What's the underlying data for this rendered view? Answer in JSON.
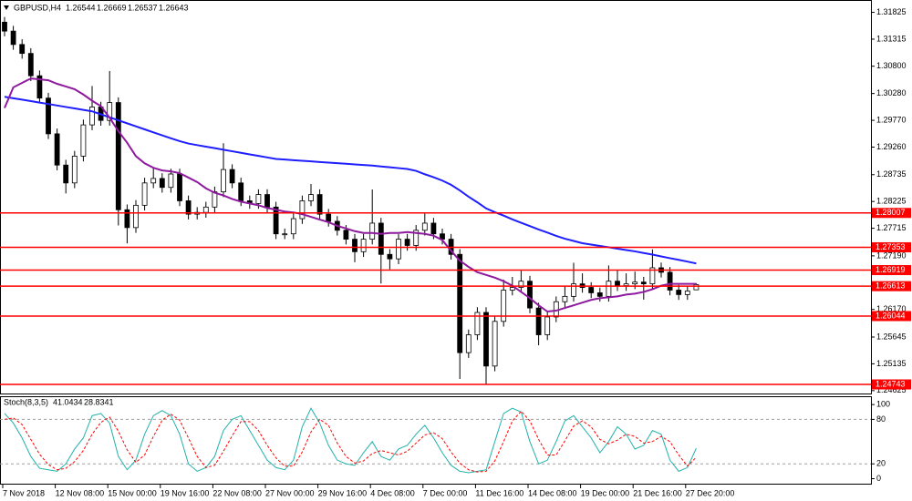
{
  "chart_data": [
    {
      "type": "candlestick",
      "title": "GBPUSD,H4",
      "categories": [
        "7 Nov 2018",
        null,
        null,
        null,
        null,
        null,
        "12 Nov 08:00",
        null,
        null,
        null,
        null,
        null,
        "15 Nov 00:00",
        null,
        null,
        null,
        null,
        null,
        "19 Nov 16:00",
        null,
        null,
        null,
        null,
        null,
        "22 Nov 08:00",
        null,
        null,
        null,
        null,
        null,
        "27 Nov 00:00",
        null,
        null,
        null,
        null,
        null,
        "29 Nov 16:00",
        null,
        null,
        null,
        null,
        null,
        "4 Dec 08:00",
        null,
        null,
        null,
        null,
        null,
        "7 Dec 00:00",
        null,
        null,
        null,
        null,
        null,
        "11 Dec 16:00",
        null,
        null,
        null,
        null,
        null,
        "14 Dec 08:00",
        null,
        null,
        null,
        null,
        null,
        "19 Dec 00:00",
        null,
        null,
        null,
        null,
        null,
        "21 Dec 16:00",
        null,
        null,
        null,
        null,
        null,
        "27 Dec 20:00",
        null
      ],
      "open": [
        1.31638,
        1.31468,
        1.31213,
        1.31043,
        1.30618,
        1.30193,
        1.29513,
        1.28918,
        1.28578,
        1.29088,
        1.29683,
        1.30023,
        1.29768,
        1.30108,
        1.28068,
        1.27728,
        1.28153,
        1.28578,
        1.28663,
        1.28493,
        1.28748,
        1.28238,
        1.27983,
        1.28017,
        1.28119,
        1.28408,
        1.28833,
        1.28578,
        1.28238,
        1.28187,
        1.28357,
        1.28119,
        1.27609,
        1.27609,
        1.27898,
        1.28238,
        1.28357,
        1.27983,
        1.27847,
        1.27677,
        1.27507,
        1.27269,
        1.27507,
        1.27813,
        1.27218,
        1.27133,
        1.27507,
        1.27388,
        1.27677,
        1.27813,
        1.27609,
        1.27507,
        1.27218,
        1.25348,
        1.25688,
        1.26113,
        1.25093,
        1.25943,
        1.26538,
        1.26589,
        1.26708,
        1.26198,
        1.25688,
        1.26028,
        1.26317,
        1.26419,
        1.26657,
        1.26589,
        1.26487,
        1.26419,
        1.26708,
        1.26623,
        1.26657,
        1.26691,
        1.26657,
        1.26963,
        1.26878,
        1.26538,
        1.26453,
        1.26544
      ],
      "high": [
        1.31738,
        1.31568,
        1.31313,
        1.31143,
        1.30718,
        1.30293,
        1.29613,
        1.29018,
        1.29188,
        1.29783,
        1.30423,
        1.30123,
        1.30708,
        1.30208,
        1.28168,
        1.28253,
        1.28678,
        1.28863,
        1.28763,
        1.28848,
        1.28848,
        1.28338,
        1.28117,
        1.28219,
        1.28508,
        1.29333,
        1.28933,
        1.28678,
        1.28338,
        1.28457,
        1.28457,
        1.28219,
        1.27709,
        1.27998,
        1.28338,
        1.28557,
        1.28457,
        1.28083,
        1.27947,
        1.27777,
        1.27607,
        1.27607,
        1.28453,
        1.27913,
        1.27318,
        1.27607,
        1.27607,
        1.27777,
        1.28013,
        1.27913,
        1.27709,
        1.27607,
        1.27318,
        1.25788,
        1.26213,
        1.26213,
        1.26043,
        1.26738,
        1.26789,
        1.26908,
        1.26808,
        1.26298,
        1.26128,
        1.26417,
        1.26619,
        1.27057,
        1.26857,
        1.26689,
        1.26587,
        1.27008,
        1.26908,
        1.26857,
        1.26891,
        1.26791,
        1.27313,
        1.27063,
        1.26978,
        1.26638,
        1.26621,
        1.26669
      ],
      "low": [
        1.31368,
        1.31113,
        1.30943,
        1.30518,
        1.30093,
        1.29413,
        1.28818,
        1.28378,
        1.28478,
        1.28988,
        1.29583,
        1.29668,
        1.29668,
        1.27768,
        1.27428,
        1.27628,
        1.28053,
        1.28478,
        1.28393,
        1.28393,
        1.28138,
        1.27883,
        1.27883,
        1.27917,
        1.28019,
        1.28308,
        1.28478,
        1.28138,
        1.28087,
        1.28087,
        1.28019,
        1.27509,
        1.27509,
        1.27509,
        1.27798,
        1.28138,
        1.27883,
        1.27747,
        1.27577,
        1.27407,
        1.27069,
        1.27169,
        1.27407,
        1.26663,
        1.26933,
        1.27033,
        1.27288,
        1.27288,
        1.27577,
        1.27509,
        1.27407,
        1.27118,
        1.24848,
        1.25248,
        1.25588,
        1.24743,
        1.24993,
        1.25843,
        1.26438,
        1.26489,
        1.26098,
        1.25488,
        1.25588,
        1.25928,
        1.26217,
        1.26319,
        1.26489,
        1.26387,
        1.26319,
        1.26319,
        1.26523,
        1.26523,
        1.26557,
        1.26357,
        1.26557,
        1.26778,
        1.26438,
        1.26353,
        1.26353,
        1.26537
      ],
      "close": [
        1.31468,
        1.31213,
        1.31043,
        1.30618,
        1.30193,
        1.29513,
        1.28918,
        1.28578,
        1.29088,
        1.29683,
        1.30023,
        1.29768,
        1.30108,
        1.28068,
        1.27728,
        1.28153,
        1.28578,
        1.28663,
        1.28493,
        1.28748,
        1.28238,
        1.27983,
        1.28017,
        1.28119,
        1.28408,
        1.28833,
        1.28578,
        1.28238,
        1.28187,
        1.28357,
        1.28119,
        1.27609,
        1.27609,
        1.27898,
        1.28238,
        1.28357,
        1.27983,
        1.27847,
        1.27677,
        1.27507,
        1.27269,
        1.27507,
        1.27813,
        1.27218,
        1.27133,
        1.27507,
        1.27388,
        1.27677,
        1.27813,
        1.27609,
        1.27507,
        1.27218,
        1.25348,
        1.25688,
        1.26113,
        1.25093,
        1.25943,
        1.26538,
        1.26589,
        1.26708,
        1.26198,
        1.25688,
        1.26028,
        1.26317,
        1.26419,
        1.26657,
        1.26589,
        1.26487,
        1.26419,
        1.26708,
        1.26623,
        1.26657,
        1.26691,
        1.26657,
        1.26963,
        1.26878,
        1.26538,
        1.26453,
        1.26521,
        1.26643
      ],
      "candle_color": "#000000",
      "up_fill": "#ffffff",
      "down_fill": "#000000",
      "series": [
        {
          "color": "#1e1eff",
          "values": [
            1.30218,
            1.3019,
            1.30163,
            1.30135,
            1.30107,
            1.3008,
            1.30052,
            1.30024,
            1.29996,
            1.29969,
            1.29941,
            1.29884,
            1.29827,
            1.2977,
            1.29713,
            1.29655,
            1.29598,
            1.29541,
            1.29484,
            1.29427,
            1.29373,
            1.29328,
            1.29298,
            1.29269,
            1.2924,
            1.2921,
            1.29181,
            1.29152,
            1.29122,
            1.29093,
            1.29064,
            1.29034,
            1.29023,
            1.29011,
            1.29,
            1.28988,
            1.28977,
            1.28966,
            1.28954,
            1.28943,
            1.28931,
            1.2892,
            1.28908,
            1.28892,
            1.28876,
            1.2886,
            1.28843,
            1.28808,
            1.28744,
            1.28687,
            1.28623,
            1.28542,
            1.28435,
            1.28316,
            1.28209,
            1.28093,
            1.28022,
            1.27957,
            1.27885,
            1.2782,
            1.27756,
            1.27692,
            1.27634,
            1.27571,
            1.27516,
            1.27474,
            1.27431,
            1.27405,
            1.27378,
            1.27354,
            1.27327,
            1.273,
            1.27276,
            1.27245,
            1.27214,
            1.2718,
            1.27146,
            1.27115,
            1.27081,
            1.27045
          ]
        },
        {
          "color": "#8e1a9e",
          "values": [
            1.30006,
            1.30397,
            1.30482,
            1.30567,
            1.3055,
            1.30533,
            1.30465,
            1.30414,
            1.30363,
            1.30261,
            1.30142,
            1.3004,
            1.29819,
            1.29564,
            1.29343,
            1.29088,
            1.28952,
            1.28867,
            1.28816,
            1.28799,
            1.28765,
            1.2868,
            1.28595,
            1.28476,
            1.28391,
            1.2834,
            1.28272,
            1.28221,
            1.28187,
            1.28153,
            1.28102,
            1.28068,
            1.28034,
            1.28017,
            1.27983,
            1.27932,
            1.27881,
            1.2783,
            1.27762,
            1.27711,
            1.2766,
            1.27626,
            1.27626,
            1.27609,
            1.27626,
            1.27626,
            1.27643,
            1.27626,
            1.27609,
            1.27575,
            1.2749,
            1.27286,
            1.27099,
            1.2698,
            1.26878,
            1.26827,
            1.26776,
            1.26708,
            1.26623,
            1.26504,
            1.26385,
            1.26249,
            1.2613,
            1.26147,
            1.26198,
            1.26249,
            1.263,
            1.26351,
            1.26385,
            1.26402,
            1.26419,
            1.26453,
            1.2647,
            1.26504,
            1.26555,
            1.26623,
            1.26657,
            1.26657,
            1.26657,
            1.26657
          ]
        }
      ],
      "ylim": [
        1.2457,
        1.3206
      ],
      "yticks": [
        1.31825,
        1.31315,
        {
          "value": 1.308,
          "label": "1.30800"
        },
        {
          "value": 1.3028,
          "label": "1.30280"
        },
        {
          "value": 1.2977,
          "label": "1.29770"
        },
        {
          "value": 1.2926,
          "label": "1.29260"
        },
        1.28735,
        1.28225,
        1.27715,
        {
          "value": 1.2719,
          "label": "1.27190"
        },
        {
          "value": 1.2617,
          "label": "1.26170"
        },
        1.25645,
        1.25135,
        1.24625
      ],
      "hlines": [
        1.28007,
        1.27353,
        1.26919,
        1.26613,
        1.26044,
        1.24743
      ],
      "hline_color": "#ff0000"
    },
    {
      "type": "line",
      "title": "Stoch(8,3,5)",
      "series": [
        {
          "color": "#20b2aa",
          "values": [
            88,
            75,
            55,
            30,
            14,
            12,
            10,
            20,
            40,
            55,
            85,
            88,
            75,
            30,
            12,
            25,
            60,
            85,
            92,
            85,
            60,
            20,
            10,
            15,
            30,
            65,
            80,
            85,
            65,
            45,
            25,
            15,
            12,
            25,
            70,
            95,
            75,
            45,
            25,
            20,
            18,
            35,
            50,
            30,
            25,
            40,
            45,
            60,
            72,
            55,
            35,
            18,
            10,
            8,
            10,
            12,
            50,
            88,
            95,
            90,
            50,
            20,
            25,
            50,
            78,
            85,
            70,
            55,
            35,
            50,
            70,
            60,
            40,
            45,
            65,
            60,
            25,
            10,
            15,
            41.0434
          ]
        },
        {
          "color": "#ff0000",
          "dash": true,
          "values": [
            80,
            82,
            73,
            53,
            33,
            19,
            12,
            14,
            23,
            38,
            60,
            76,
            83,
            64,
            39,
            22,
            32,
            57,
            79,
            87,
            79,
            55,
            30,
            15,
            18,
            37,
            58,
            77,
            77,
            65,
            45,
            28,
            17,
            17,
            36,
            63,
            80,
            72,
            48,
            30,
            21,
            24,
            34,
            38,
            35,
            32,
            37,
            48,
            59,
            62,
            54,
            36,
            21,
            12,
            9,
            10,
            24,
            50,
            78,
            91,
            78,
            53,
            32,
            32,
            51,
            71,
            78,
            70,
            53,
            47,
            52,
            60,
            57,
            48,
            50,
            57,
            50,
            32,
            17,
            28.8341
          ]
        }
      ],
      "ylim": [
        -8,
        110
      ],
      "yticks": [
        100,
        80,
        20,
        0
      ],
      "levels": [
        80,
        20
      ]
    }
  ]
}
